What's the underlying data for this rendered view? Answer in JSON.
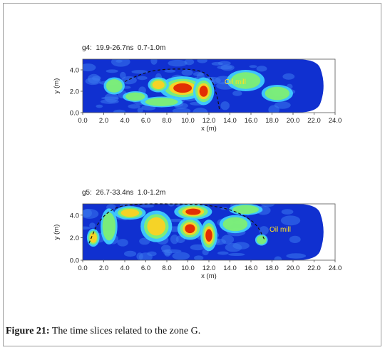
{
  "caption": {
    "label": "Figure 21:",
    "text": " The time slices related to the zone G."
  },
  "chart_data": [
    {
      "type": "heatmap",
      "title": "g4:  19.9-26.7ns  0.7-1.0m",
      "xlabel": "x (m)",
      "ylabel": "y (m)",
      "xlim": [
        0,
        24
      ],
      "ylim": [
        0,
        5
      ],
      "x_ticks": [
        "0.0",
        "2.0",
        "4.0",
        "6.0",
        "8.0",
        "10.0",
        "12.0",
        "14.0",
        "16.0",
        "18.0",
        "20.0",
        "22.0",
        "24.0"
      ],
      "y_ticks": [
        "0.0",
        "2.0",
        "4.0"
      ],
      "annotation": "Oil mill",
      "colors": {
        "low": "#1030d0",
        "mid": "#40d0ff",
        "mid2": "#80f070",
        "high1": "#ffd020",
        "high2": "#e02000"
      },
      "anomalies": [
        {
          "x": 9.5,
          "y": 2.3,
          "rx": 2.2,
          "ry": 1.1,
          "level": 1.0
        },
        {
          "x": 11.5,
          "y": 2.0,
          "rx": 1.0,
          "ry": 1.3,
          "level": 0.9
        },
        {
          "x": 7.2,
          "y": 2.6,
          "rx": 1.0,
          "ry": 0.7,
          "level": 0.75
        },
        {
          "x": 5.0,
          "y": 1.5,
          "rx": 1.2,
          "ry": 0.5,
          "level": 0.45
        },
        {
          "x": 3.0,
          "y": 2.5,
          "rx": 1.0,
          "ry": 0.8,
          "level": 0.35
        },
        {
          "x": 7.5,
          "y": 1.0,
          "rx": 2.0,
          "ry": 0.5,
          "level": 0.5
        },
        {
          "x": 15.5,
          "y": 3.0,
          "rx": 1.8,
          "ry": 1.0,
          "level": 0.35
        },
        {
          "x": 18.5,
          "y": 1.8,
          "rx": 1.5,
          "ry": 0.8,
          "level": 0.3
        }
      ],
      "boundary": [
        [
          4.0,
          2.9
        ],
        [
          5.5,
          3.6
        ],
        [
          7.0,
          4.0
        ],
        [
          9.0,
          4.1
        ],
        [
          11.0,
          4.0
        ],
        [
          12.2,
          3.4
        ],
        [
          12.8,
          1.5
        ],
        [
          13.0,
          0.3
        ]
      ]
    },
    {
      "type": "heatmap",
      "title": "g5:  26.7-33.4ns  1.0-1.2m",
      "xlabel": "x (m)",
      "ylabel": "y (m)",
      "xlim": [
        0,
        24
      ],
      "ylim": [
        0,
        5
      ],
      "x_ticks": [
        "0.0",
        "2.0",
        "4.0",
        "6.0",
        "8.0",
        "10.0",
        "12.0",
        "14.0",
        "16.0",
        "18.0",
        "20.0",
        "22.0",
        "24.0"
      ],
      "y_ticks": [
        "0.0",
        "2.0",
        "4.0"
      ],
      "annotation": "Oil mill",
      "colors": {
        "low": "#1030d0",
        "mid": "#40d0ff",
        "mid2": "#80f070",
        "high1": "#ffd020",
        "high2": "#e02000"
      },
      "anomalies": [
        {
          "x": 10.5,
          "y": 4.3,
          "rx": 1.8,
          "ry": 0.7,
          "level": 1.0
        },
        {
          "x": 10.2,
          "y": 2.8,
          "rx": 1.2,
          "ry": 1.0,
          "level": 0.9
        },
        {
          "x": 12.0,
          "y": 2.2,
          "rx": 0.8,
          "ry": 1.4,
          "level": 0.85
        },
        {
          "x": 7.0,
          "y": 3.0,
          "rx": 1.5,
          "ry": 1.4,
          "level": 0.6
        },
        {
          "x": 4.5,
          "y": 4.2,
          "rx": 1.5,
          "ry": 0.6,
          "level": 0.55
        },
        {
          "x": 2.5,
          "y": 3.0,
          "rx": 0.8,
          "ry": 1.6,
          "level": 0.5
        },
        {
          "x": 1.0,
          "y": 2.0,
          "rx": 0.6,
          "ry": 0.8,
          "level": 0.55
        },
        {
          "x": 14.5,
          "y": 3.2,
          "rx": 1.5,
          "ry": 0.8,
          "level": 0.5
        },
        {
          "x": 15.5,
          "y": 4.5,
          "rx": 1.6,
          "ry": 0.5,
          "level": 0.35
        },
        {
          "x": 17.0,
          "y": 1.8,
          "rx": 0.6,
          "ry": 0.5,
          "level": 0.5
        }
      ],
      "boundary": [
        [
          0.6,
          1.5
        ],
        [
          1.5,
          3.5
        ],
        [
          3.0,
          4.7
        ],
        [
          5.0,
          5.0
        ],
        [
          9.0,
          5.0
        ],
        [
          12.0,
          4.9
        ],
        [
          14.5,
          4.4
        ],
        [
          16.5,
          3.3
        ],
        [
          17.3,
          1.8
        ]
      ]
    }
  ]
}
